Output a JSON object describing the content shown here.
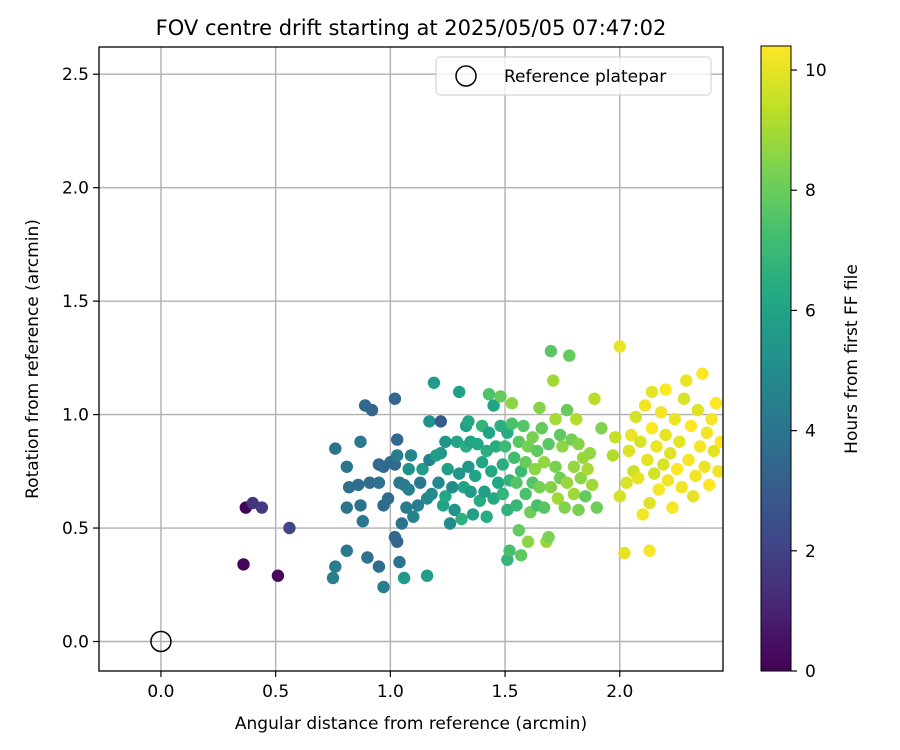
{
  "chart_data": {
    "type": "scatter",
    "title": "FOV centre drift starting at 2025/05/05 07:47:02",
    "xlabel": "Angular distance from reference (arcmin)",
    "ylabel": "Rotation from reference (arcmin)",
    "xlim": [
      -0.27,
      2.45
    ],
    "ylim": [
      -0.13,
      2.62
    ],
    "x_ticks": [
      0.0,
      0.5,
      1.0,
      1.5,
      2.0
    ],
    "x_tick_labels": [
      "0.0",
      "0.5",
      "1.0",
      "1.5",
      "2.0"
    ],
    "y_ticks": [
      0.0,
      0.5,
      1.0,
      1.5,
      2.0,
      2.5
    ],
    "y_tick_labels": [
      "0.0",
      "0.5",
      "1.0",
      "1.5",
      "2.0",
      "2.5"
    ],
    "grid": true,
    "legend": {
      "placement": "top-right",
      "entries": [
        "Reference platepar"
      ]
    },
    "reference_point": {
      "x": 0.0,
      "y": 0.0,
      "label": "Reference platepar"
    },
    "colorbar": {
      "label": "Hours from first FF file",
      "range": [
        0,
        10.4
      ],
      "ticks": [
        0,
        2,
        4,
        6,
        8,
        10
      ],
      "tick_labels": [
        "0",
        "2",
        "4",
        "6",
        "8",
        "10"
      ],
      "colormap": "viridis"
    },
    "points": [
      [
        0.37,
        0.59,
        0.1
      ],
      [
        0.36,
        0.34,
        0.1
      ],
      [
        0.51,
        0.29,
        0.2
      ],
      [
        0.4,
        0.61,
        1.6
      ],
      [
        0.44,
        0.59,
        1.8
      ],
      [
        0.56,
        0.5,
        2.1
      ],
      [
        0.76,
        0.85,
        3.9
      ],
      [
        0.81,
        0.77,
        4.0
      ],
      [
        0.82,
        0.68,
        3.8
      ],
      [
        0.81,
        0.59,
        4.0
      ],
      [
        0.81,
        0.4,
        4.2
      ],
      [
        0.76,
        0.33,
        4.3
      ],
      [
        0.75,
        0.28,
        4.4
      ],
      [
        0.86,
        0.69,
        3.7
      ],
      [
        0.87,
        0.6,
        4.0
      ],
      [
        0.88,
        0.53,
        4.1
      ],
      [
        0.87,
        0.88,
        4.2
      ],
      [
        0.89,
        1.04,
        3.6
      ],
      [
        0.92,
        1.02,
        3.4
      ],
      [
        0.91,
        0.7,
        3.7
      ],
      [
        0.9,
        0.37,
        3.9
      ],
      [
        0.95,
        0.33,
        3.8
      ],
      [
        0.97,
        0.24,
        4.4
      ],
      [
        0.95,
        0.78,
        3.5
      ],
      [
        0.97,
        0.77,
        3.6
      ],
      [
        0.95,
        0.7,
        3.9
      ],
      [
        0.97,
        0.6,
        3.6
      ],
      [
        0.99,
        0.63,
        3.7
      ],
      [
        1.0,
        0.79,
        3.7
      ],
      [
        1.02,
        0.78,
        3.6
      ],
      [
        1.02,
        1.07,
        3.4
      ],
      [
        1.03,
        0.89,
        3.5
      ],
      [
        1.03,
        0.82,
        4.3
      ],
      [
        1.02,
        0.46,
        3.5
      ],
      [
        1.03,
        0.44,
        3.4
      ],
      [
        1.04,
        0.35,
        4.0
      ],
      [
        1.04,
        0.7,
        4.1
      ],
      [
        1.05,
        0.52,
        4.0
      ],
      [
        1.06,
        0.69,
        4.2
      ],
      [
        1.07,
        0.59,
        4.3
      ],
      [
        1.06,
        0.28,
        5.5
      ],
      [
        1.08,
        0.76,
        5.2
      ],
      [
        1.09,
        0.82,
        4.8
      ],
      [
        1.08,
        0.67,
        4.5
      ],
      [
        1.1,
        0.55,
        4.6
      ],
      [
        1.12,
        0.6,
        4.4
      ],
      [
        1.13,
        0.7,
        4.1
      ],
      [
        1.14,
        0.76,
        5.6
      ],
      [
        1.16,
        0.63,
        4.8
      ],
      [
        1.16,
        0.29,
        5.8
      ],
      [
        1.17,
        0.97,
        5.3
      ],
      [
        1.17,
        0.8,
        4.5
      ],
      [
        1.18,
        0.65,
        4.9
      ],
      [
        1.19,
        1.14,
        5.7
      ],
      [
        1.2,
        0.82,
        5.8
      ],
      [
        1.21,
        0.7,
        4.9
      ],
      [
        1.22,
        0.97,
        3.0
      ],
      [
        1.22,
        0.83,
        5.6
      ],
      [
        1.23,
        0.6,
        6.0
      ],
      [
        1.24,
        0.64,
        6.2
      ],
      [
        1.24,
        0.88,
        5.4
      ],
      [
        1.25,
        0.76,
        5.8
      ],
      [
        1.26,
        0.52,
        5.0
      ],
      [
        1.27,
        0.68,
        4.9
      ],
      [
        1.28,
        0.58,
        5.3
      ],
      [
        1.29,
        0.88,
        6.1
      ],
      [
        1.3,
        0.74,
        5.4
      ],
      [
        1.3,
        1.1,
        5.9
      ],
      [
        1.31,
        0.54,
        6.6
      ],
      [
        1.32,
        0.68,
        6.0
      ],
      [
        1.33,
        0.95,
        5.8
      ],
      [
        1.33,
        0.86,
        6.5
      ],
      [
        1.34,
        0.77,
        5.5
      ],
      [
        1.34,
        0.97,
        6.3
      ],
      [
        1.35,
        0.66,
        5.6
      ],
      [
        1.35,
        0.88,
        6.0
      ],
      [
        1.36,
        0.56,
        5.8
      ],
      [
        1.37,
        0.73,
        6.1
      ],
      [
        1.38,
        0.87,
        6.2
      ],
      [
        1.39,
        0.62,
        6.4
      ],
      [
        1.4,
        0.95,
        6.8
      ],
      [
        1.4,
        0.79,
        6.2
      ],
      [
        1.41,
        0.66,
        5.9
      ],
      [
        1.42,
        0.55,
        6.4
      ],
      [
        1.42,
        0.84,
        6.5
      ],
      [
        1.43,
        1.09,
        7.5
      ],
      [
        1.43,
        0.92,
        6.0
      ],
      [
        1.44,
        0.75,
        6.2
      ],
      [
        1.45,
        1.04,
        6.1
      ],
      [
        1.45,
        0.63,
        6.3
      ],
      [
        1.46,
        0.86,
        6.4
      ],
      [
        1.47,
        0.7,
        6.2
      ],
      [
        1.48,
        0.95,
        6.6
      ],
      [
        1.48,
        1.08,
        7.9
      ],
      [
        1.49,
        0.65,
        6.8
      ],
      [
        1.49,
        0.78,
        6.5
      ],
      [
        1.5,
        0.86,
        7.0
      ],
      [
        1.51,
        0.58,
        6.7
      ],
      [
        1.51,
        0.92,
        6.4
      ],
      [
        1.51,
        0.36,
        6.8
      ],
      [
        1.52,
        0.71,
        6.8
      ],
      [
        1.52,
        0.4,
        7.3
      ],
      [
        1.53,
        0.96,
        7.4
      ],
      [
        1.53,
        1.05,
        8.6
      ],
      [
        1.54,
        0.81,
        7.2
      ],
      [
        1.55,
        0.6,
        6.9
      ],
      [
        1.55,
        0.7,
        7.6
      ],
      [
        1.56,
        0.88,
        7.7
      ],
      [
        1.56,
        0.49,
        7.9
      ],
      [
        1.57,
        0.38,
        7.8
      ],
      [
        1.57,
        0.75,
        7.0
      ],
      [
        1.58,
        0.95,
        7.6
      ],
      [
        1.59,
        0.65,
        7.4
      ],
      [
        1.59,
        0.79,
        8.0
      ],
      [
        1.6,
        0.86,
        8.2
      ],
      [
        1.6,
        0.44,
        8.6
      ],
      [
        1.61,
        0.57,
        8.1
      ],
      [
        1.62,
        0.7,
        7.5
      ],
      [
        1.62,
        0.9,
        8.3
      ],
      [
        1.63,
        0.76,
        8.6
      ],
      [
        1.64,
        0.6,
        7.3
      ],
      [
        1.64,
        0.84,
        7.8
      ],
      [
        1.65,
        1.03,
        8.5
      ],
      [
        1.65,
        0.68,
        8.2
      ],
      [
        1.66,
        0.94,
        7.9
      ],
      [
        1.67,
        0.59,
        7.6
      ],
      [
        1.67,
        0.79,
        8.7
      ],
      [
        1.68,
        0.44,
        8.8
      ],
      [
        1.69,
        0.46,
        8.3
      ],
      [
        1.69,
        0.87,
        7.7
      ],
      [
        1.7,
        1.28,
        7.7
      ],
      [
        1.7,
        0.68,
        8.5
      ],
      [
        1.71,
        1.15,
        8.9
      ],
      [
        1.72,
        0.98,
        9.0
      ],
      [
        1.72,
        0.77,
        8.3
      ],
      [
        1.73,
        0.63,
        8.9
      ],
      [
        1.74,
        0.91,
        7.8
      ],
      [
        1.74,
        0.72,
        8.1
      ],
      [
        1.75,
        0.86,
        8.6
      ],
      [
        1.76,
        0.59,
        8.4
      ],
      [
        1.77,
        1.02,
        8.0
      ],
      [
        1.77,
        0.7,
        8.8
      ],
      [
        1.78,
        1.26,
        7.9
      ],
      [
        1.79,
        0.89,
        8.2
      ],
      [
        1.8,
        0.77,
        8.7
      ],
      [
        1.8,
        0.65,
        8.9
      ],
      [
        1.81,
        0.98,
        9.2
      ],
      [
        1.82,
        0.58,
        8.3
      ],
      [
        1.82,
        0.87,
        8.5
      ],
      [
        1.83,
        0.72,
        8.6
      ],
      [
        1.84,
        0.81,
        8.8
      ],
      [
        1.85,
        0.64,
        7.9
      ],
      [
        1.86,
        0.76,
        9.0
      ],
      [
        1.87,
        0.83,
        8.7
      ],
      [
        1.88,
        0.69,
        8.9
      ],
      [
        1.89,
        1.07,
        9.3
      ],
      [
        1.9,
        0.59,
        8.1
      ],
      [
        1.92,
        0.94,
        8.4
      ],
      [
        1.97,
        0.82,
        9.2
      ],
      [
        1.98,
        0.9,
        9.5
      ],
      [
        2.0,
        1.3,
        10.1
      ],
      [
        2.0,
        0.64,
        9.7
      ],
      [
        2.02,
        0.39,
        10.0
      ],
      [
        2.03,
        0.7,
        9.8
      ],
      [
        2.04,
        0.84,
        9.9
      ],
      [
        2.05,
        0.91,
        10.1
      ],
      [
        2.06,
        0.75,
        9.6
      ],
      [
        2.07,
        0.99,
        9.7
      ],
      [
        2.08,
        0.72,
        10.0
      ],
      [
        2.09,
        0.88,
        9.8
      ],
      [
        2.1,
        0.56,
        10.2
      ],
      [
        2.11,
        1.04,
        10.2
      ],
      [
        2.12,
        0.8,
        10.0
      ],
      [
        2.13,
        0.61,
        9.9
      ],
      [
        2.13,
        0.4,
        10.3
      ],
      [
        2.14,
        0.94,
        10.4
      ],
      [
        2.14,
        1.1,
        10.0
      ],
      [
        2.15,
        0.74,
        9.7
      ],
      [
        2.16,
        0.86,
        10.1
      ],
      [
        2.17,
        0.67,
        10.3
      ],
      [
        2.18,
        1.01,
        10.2
      ],
      [
        2.19,
        0.78,
        9.8
      ],
      [
        2.2,
        1.11,
        10.4
      ],
      [
        2.2,
        0.91,
        10.0
      ],
      [
        2.21,
        0.71,
        10.2
      ],
      [
        2.22,
        0.83,
        9.9
      ],
      [
        2.23,
        0.59,
        10.3
      ],
      [
        2.24,
        0.98,
        10.1
      ],
      [
        2.25,
        0.76,
        10.4
      ],
      [
        2.26,
        0.88,
        10.0
      ],
      [
        2.27,
        0.68,
        10.2
      ],
      [
        2.28,
        1.07,
        9.8
      ],
      [
        2.29,
        1.15,
        10.1
      ],
      [
        2.3,
        0.8,
        10.3
      ],
      [
        2.31,
        0.95,
        10.4
      ],
      [
        2.32,
        0.64,
        10.0
      ],
      [
        2.33,
        0.73,
        10.2
      ],
      [
        2.34,
        1.02,
        9.9
      ],
      [
        2.35,
        0.86,
        10.3
      ],
      [
        2.36,
        1.18,
        10.4
      ],
      [
        2.37,
        0.77,
        10.1
      ],
      [
        2.38,
        0.92,
        10.2
      ],
      [
        2.39,
        0.69,
        10.4
      ],
      [
        2.4,
        0.98,
        10.3
      ],
      [
        2.41,
        0.84,
        10.0
      ],
      [
        2.42,
        1.05,
        10.4
      ],
      [
        2.43,
        0.75,
        10.2
      ],
      [
        2.44,
        0.88,
        10.4
      ]
    ]
  }
}
